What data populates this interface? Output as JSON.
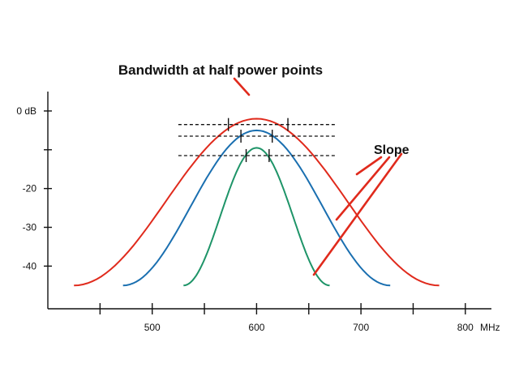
{
  "title": "Bandwidth at half power points",
  "slope_label": "Slope",
  "x_unit": "MHz",
  "colors": {
    "axis": "#111111",
    "pointer": "#e02a1c"
  },
  "x_axis": {
    "range": [
      400,
      825
    ],
    "labeled_ticks": [
      {
        "value": 500,
        "label": "500"
      },
      {
        "value": 600,
        "label": "600"
      },
      {
        "value": 700,
        "label": "700"
      },
      {
        "value": 800,
        "label": "800"
      }
    ],
    "minor_ticks": [
      450,
      550,
      650,
      750
    ]
  },
  "y_axis": {
    "range": [
      -51,
      5
    ],
    "ticks": [
      {
        "value": 0,
        "label": "0 dB"
      },
      {
        "value": -20,
        "label": "-20"
      },
      {
        "value": -30,
        "label": "-30"
      },
      {
        "value": -40,
        "label": "-40"
      }
    ],
    "minor_ticks": [
      -10
    ]
  },
  "curves": [
    {
      "name": "wide",
      "color": "#e02a1c",
      "center": 600,
      "peak": -2,
      "half_width": 175
    },
    {
      "name": "medium",
      "color": "#1a6fb0",
      "center": 600,
      "peak": -5,
      "half_width": 128
    },
    {
      "name": "narrow",
      "color": "#1e9468",
      "center": 600,
      "peak": -9.5,
      "half_width": 70
    }
  ],
  "half_power_lines": [
    {
      "level": -3.5,
      "x_start": 525,
      "x_end": 675,
      "markers": [
        573,
        630
      ]
    },
    {
      "level": -6.5,
      "x_start": 525,
      "x_end": 675,
      "markers": [
        585,
        615
      ]
    },
    {
      "level": -11.5,
      "x_start": 525,
      "x_end": 675,
      "markers": [
        590,
        612
      ]
    }
  ]
}
